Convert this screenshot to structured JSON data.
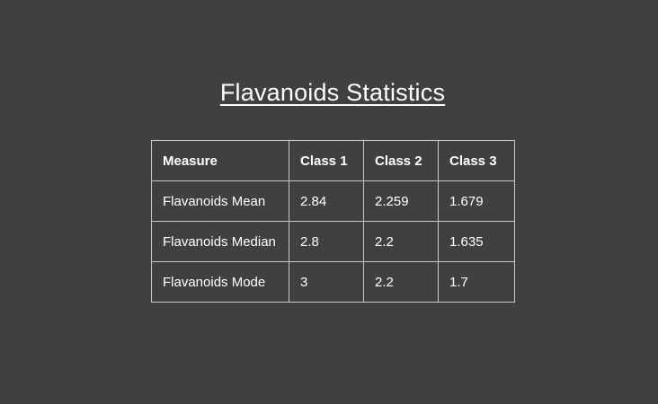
{
  "title": "Flavanoids Statistics",
  "table": {
    "headers": [
      "Measure",
      "Class 1",
      "Class 2",
      "Class 3"
    ],
    "rows": [
      [
        "Flavanoids Mean",
        "2.84",
        "2.259",
        "1.679"
      ],
      [
        "Flavanoids Median",
        "2.8",
        "2.2",
        "1.635"
      ],
      [
        "Flavanoids Mode",
        "3",
        "2.2",
        "1.7"
      ]
    ]
  },
  "colors": {
    "background": "#404040",
    "text": "#ffffff",
    "border": "#c8c8c8"
  }
}
